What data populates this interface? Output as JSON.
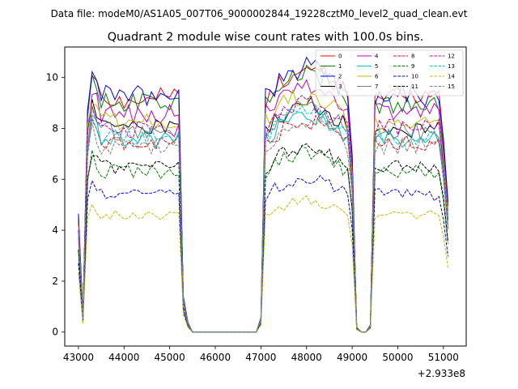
{
  "figure": {
    "suptitle": "Data file: modeM0/AS1A05_007T06_9000002844_19228cztM0_level2_quad_clean.evt",
    "offset_label": "+2.933e8"
  },
  "chart_data": {
    "type": "line",
    "title": "Quadrant 2 module wise count rates with 100.0s bins.",
    "xlabel": "",
    "ylabel": "",
    "x_offset": 293300000,
    "xlim": [
      42700,
      51500
    ],
    "ylim": [
      -0.55,
      11.2
    ],
    "xticks": [
      43000,
      44000,
      45000,
      46000,
      47000,
      48000,
      49000,
      50000,
      51000
    ],
    "xtick_labels": [
      "43000",
      "44000",
      "45000",
      "46000",
      "47000",
      "48000",
      "49000",
      "50000",
      "51000"
    ],
    "yticks": [
      0,
      2,
      4,
      6,
      8,
      10
    ],
    "ytick_labels": [
      "0",
      "2",
      "4",
      "6",
      "8",
      "10"
    ],
    "legend_position": "top-right",
    "grid": false,
    "x": [
      43000,
      43100,
      43200,
      43300,
      43400,
      43500,
      43600,
      43700,
      43800,
      43900,
      44000,
      44100,
      44200,
      44300,
      44400,
      44500,
      44600,
      44700,
      44800,
      44900,
      45000,
      45100,
      45200,
      45300,
      45400,
      45500,
      46900,
      47000,
      47100,
      47200,
      47300,
      47400,
      47500,
      47600,
      47700,
      47800,
      47900,
      48000,
      48100,
      48200,
      48300,
      48400,
      48500,
      48600,
      48700,
      48800,
      48900,
      49000,
      49100,
      49200,
      49300,
      49400,
      49500,
      49600,
      49700,
      49800,
      49900,
      50000,
      50100,
      50200,
      50300,
      50400,
      50500,
      50600,
      50700,
      50800,
      50900,
      51000,
      51100
    ],
    "series": [
      {
        "name": "0",
        "color": "#ff0000",
        "dash": "solid",
        "level": 9.2
      },
      {
        "name": "1",
        "color": "#008000",
        "dash": "solid",
        "level": 9.0
      },
      {
        "name": "2",
        "color": "#0000ff",
        "dash": "solid",
        "level": 9.3
      },
      {
        "name": "3",
        "color": "#000000",
        "dash": "solid",
        "level": 8.0
      },
      {
        "name": "4",
        "color": "#bf00bf",
        "dash": "solid",
        "level": 8.6
      },
      {
        "name": "5",
        "color": "#00bfbf",
        "dash": "solid",
        "level": 7.6
      },
      {
        "name": "6",
        "color": "#bfbf00",
        "dash": "solid",
        "level": 8.3
      },
      {
        "name": "7",
        "color": "#808080",
        "dash": "solid",
        "level": 7.9
      },
      {
        "name": "8",
        "color": "#ff0000",
        "dash": "dashed",
        "level": 7.4
      },
      {
        "name": "9",
        "color": "#008000",
        "dash": "dashed",
        "level": 6.3
      },
      {
        "name": "10",
        "color": "#0000ff",
        "dash": "dashed",
        "level": 5.4
      },
      {
        "name": "11",
        "color": "#000000",
        "dash": "dashed",
        "level": 6.5
      },
      {
        "name": "12",
        "color": "#bf00bf",
        "dash": "dashed",
        "level": 8.0
      },
      {
        "name": "13",
        "color": "#00bfbf",
        "dash": "dashed",
        "level": 7.7
      },
      {
        "name": "14",
        "color": "#bfbf00",
        "dash": "dashed",
        "level": 4.6
      },
      {
        "name": "15",
        "color": "#808080",
        "dash": "dashed",
        "level": 7.3
      }
    ]
  }
}
